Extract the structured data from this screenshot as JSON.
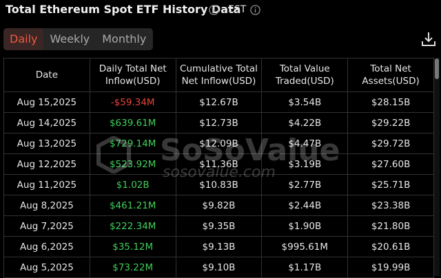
{
  "header": {
    "title": "Total Ethereum Spot ETF History Data",
    "timezone": "EST"
  },
  "tabs": [
    "Daily",
    "Weekly",
    "Monthly"
  ],
  "active_tab": 0,
  "table": {
    "columns": [
      "Date",
      "Daily Total Net Inflow(USD)",
      "Cumulative Total Net Inflow(USD)",
      "Total Value Traded(USD)",
      "Total Net Assets(USD)"
    ],
    "rows": [
      [
        "Aug 15,2025",
        "-$59.34M",
        "$12.67B",
        "$3.54B",
        "$28.15B"
      ],
      [
        "Aug 14,2025",
        "$639.61M",
        "$12.73B",
        "$4.22B",
        "$29.22B"
      ],
      [
        "Aug 13,2025",
        "$729.14M",
        "$12.09B",
        "$4.47B",
        "$29.72B"
      ],
      [
        "Aug 12,2025",
        "$523.92M",
        "$11.36B",
        "$3.19B",
        "$27.60B"
      ],
      [
        "Aug 11,2025",
        "$1.02B",
        "$10.83B",
        "$2.77B",
        "$25.71B"
      ],
      [
        "Aug 8,2025",
        "$461.21M",
        "$9.82B",
        "$2.44B",
        "$23.38B"
      ],
      [
        "Aug 7,2025",
        "$222.34M",
        "$9.35B",
        "$1.90B",
        "$21.80B"
      ],
      [
        "Aug 6,2025",
        "$35.12M",
        "$9.13B",
        "$995.61M",
        "$20.61B"
      ],
      [
        "Aug 5,2025",
        "$73.22M",
        "$9.10B",
        "$1.17B",
        "$19.99B"
      ]
    ]
  },
  "watermark": {
    "brand": "SoSoValue",
    "url": "sosovalue.com"
  }
}
